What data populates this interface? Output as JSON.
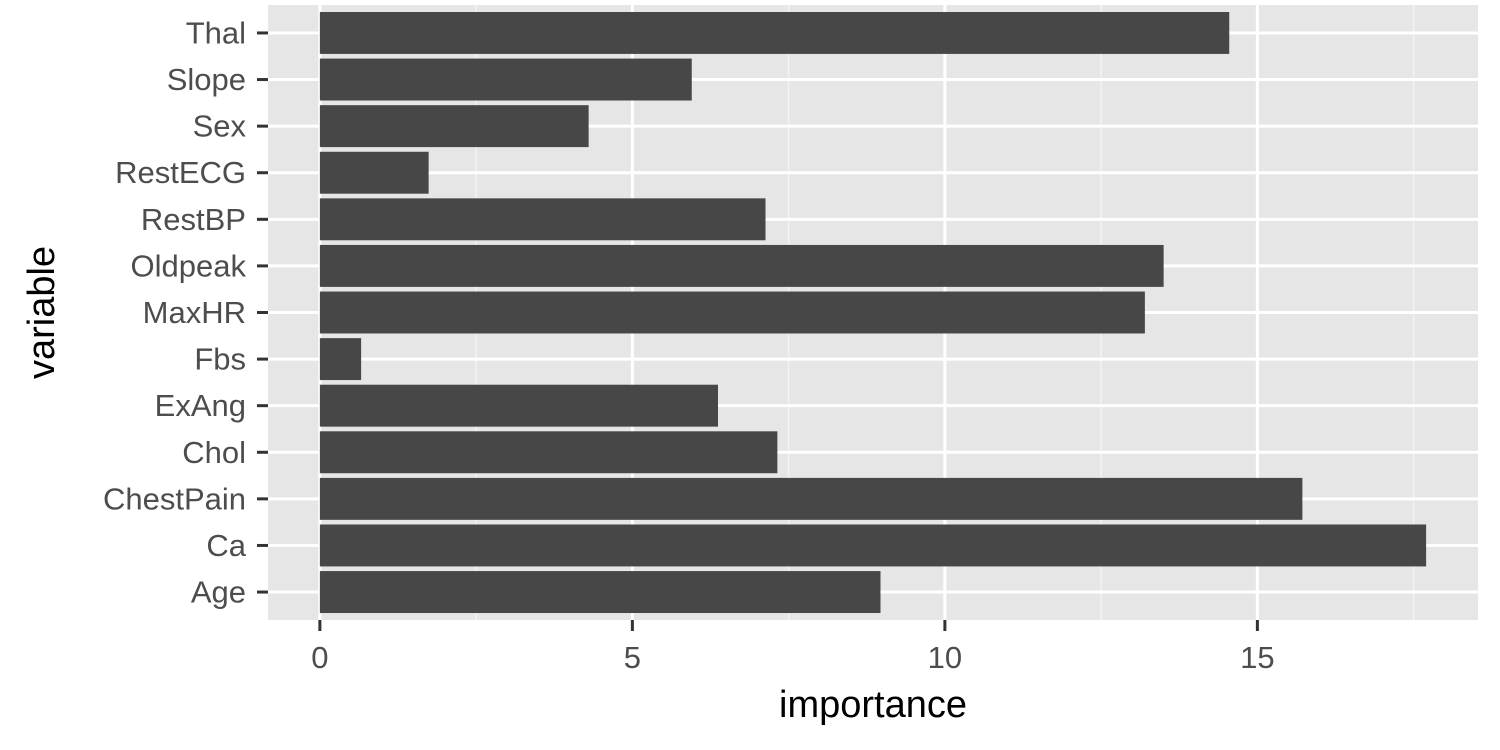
{
  "chart_data": {
    "type": "bar",
    "orientation": "horizontal",
    "title": "",
    "xlabel": "importance",
    "ylabel": "variable",
    "categories": [
      "Age",
      "Ca",
      "ChestPain",
      "Chol",
      "ExAng",
      "Fbs",
      "MaxHR",
      "Oldpeak",
      "RestBP",
      "RestECG",
      "Sex",
      "Slope",
      "Thal"
    ],
    "values": [
      8.97,
      17.7,
      15.72,
      7.32,
      6.37,
      0.66,
      13.2,
      13.5,
      7.13,
      1.74,
      4.3,
      5.95,
      14.55
    ],
    "xlim": [
      -0.83,
      18.53
    ],
    "x_ticks": [
      0,
      5,
      10,
      15
    ],
    "x_tick_labels": [
      "0",
      "5",
      "10",
      "15"
    ],
    "grid": true,
    "legend": "none",
    "colors": {
      "bar": "#474747",
      "panel": "#e6e6e6",
      "grid_major": "#ffffff",
      "grid_minor": "#f2f2f2",
      "tick_text": "#4d4d4d",
      "tick_mark": "#333333",
      "title_text": "#000000"
    }
  }
}
